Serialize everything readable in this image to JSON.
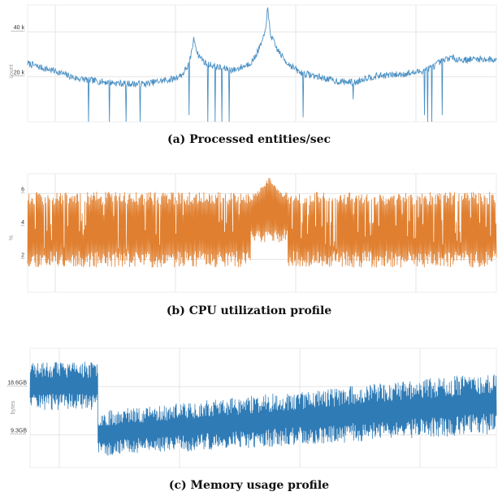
{
  "colors": {
    "blue": "#4a90c4",
    "orange": "#e07f2f",
    "memblue": "#2f7bb6",
    "grid": "#e6e6e6"
  },
  "panels": [
    {
      "caption": "(a) Processed entities/sec",
      "chart_data": {
        "type": "line",
        "title": "",
        "xlabel": "",
        "ylabel": "count",
        "y_ticks": [
          {
            "value": 20000,
            "label": "20 k"
          },
          {
            "value": 40000,
            "label": "40 k"
          }
        ],
        "ylim": [
          0,
          52000
        ],
        "x_range": [
          0,
          100
        ],
        "grid": true,
        "series": [
          {
            "anchors": [
              [
                0,
                26000
              ],
              [
                3,
                24000
              ],
              [
                6,
                22500
              ],
              [
                10,
                19500
              ],
              [
                15,
                18000
              ],
              [
                20,
                17000
              ],
              [
                25,
                16800
              ],
              [
                28,
                18000
              ],
              [
                31,
                19000
              ],
              [
                33,
                21000
              ],
              [
                34.5,
                26000
              ],
              [
                35.5,
                37000
              ],
              [
                36.3,
                30000
              ],
              [
                38,
                26000
              ],
              [
                41,
                24000
              ],
              [
                44,
                23000
              ],
              [
                46.5,
                25000
              ],
              [
                48,
                27000
              ],
              [
                49.5,
                33000
              ],
              [
                50.5,
                38000
              ],
              [
                51.2,
                50000
              ],
              [
                51.8,
                39000
              ],
              [
                53,
                33000
              ],
              [
                55,
                27000
              ],
              [
                58,
                22000
              ],
              [
                62,
                20000
              ],
              [
                66,
                18000
              ],
              [
                70,
                17500
              ],
              [
                72,
                19500
              ],
              [
                75,
                20500
              ],
              [
                79,
                21000
              ],
              [
                83,
                22000
              ],
              [
                86,
                24000
              ],
              [
                88,
                26500
              ],
              [
                90,
                28500
              ],
              [
                93,
                27500
              ],
              [
                96,
                28000
              ],
              [
                100,
                27500
              ]
            ],
            "noise": 1500,
            "dips": [
              [
                13,
                0
              ],
              [
                17.5,
                0
              ],
              [
                21,
                0
              ],
              [
                24,
                0
              ],
              [
                34.4,
                3000
              ],
              [
                38.5,
                0
              ],
              [
                40,
                0
              ],
              [
                41.5,
                0
              ],
              [
                43,
                0
              ],
              [
                58.8,
                2000
              ],
              [
                69.5,
                10000
              ],
              [
                84.7,
                3000
              ],
              [
                85.3,
                0
              ],
              [
                86.2,
                0
              ],
              [
                88.5,
                3000
              ]
            ]
          }
        ]
      }
    },
    {
      "caption": "(b) CPU utilization profile",
      "chart_data": {
        "type": "line",
        "title": "",
        "xlabel": "",
        "ylabel": "%",
        "y_ticks": [
          {
            "value": 2,
            "label": "2"
          },
          {
            "value": 4,
            "label": "4"
          },
          {
            "value": 6,
            "label": "6"
          }
        ],
        "ylim": [
          0,
          7.2
        ],
        "x_range": [
          0,
          100
        ],
        "grid": true,
        "series": [
          {
            "low_band": [
              1.5,
              2.5
            ],
            "high_band": [
              5.3,
              6.1
            ],
            "peak": {
              "x": 51.5,
              "value": 7.0
            },
            "oscillations": 520
          }
        ]
      }
    },
    {
      "caption": "(c) Memory usage profile",
      "chart_data": {
        "type": "line",
        "title": "",
        "xlabel": "",
        "ylabel": "bytes",
        "y_ticks": [
          {
            "value": 9.3,
            "label": "9.3GB"
          },
          {
            "value": 18.6,
            "label": "18.6GB"
          }
        ],
        "ylim": [
          3,
          26
        ],
        "x_range": [
          0,
          100
        ],
        "grid": true,
        "series": [
          {
            "segments": [
              {
                "x": [
                  0,
                  14.5
                ],
                "low": [
                  14.5,
                  14.5
                ],
                "high": [
                  23.0,
                  23.0
                ]
              },
              {
                "x": [
                  14.5,
                  100
                ],
                "low": [
                  5.5,
                  10.0
                ],
                "high": [
                  13.5,
                  21.0
                ]
              }
            ],
            "oscillations": 700
          }
        ]
      }
    }
  ]
}
